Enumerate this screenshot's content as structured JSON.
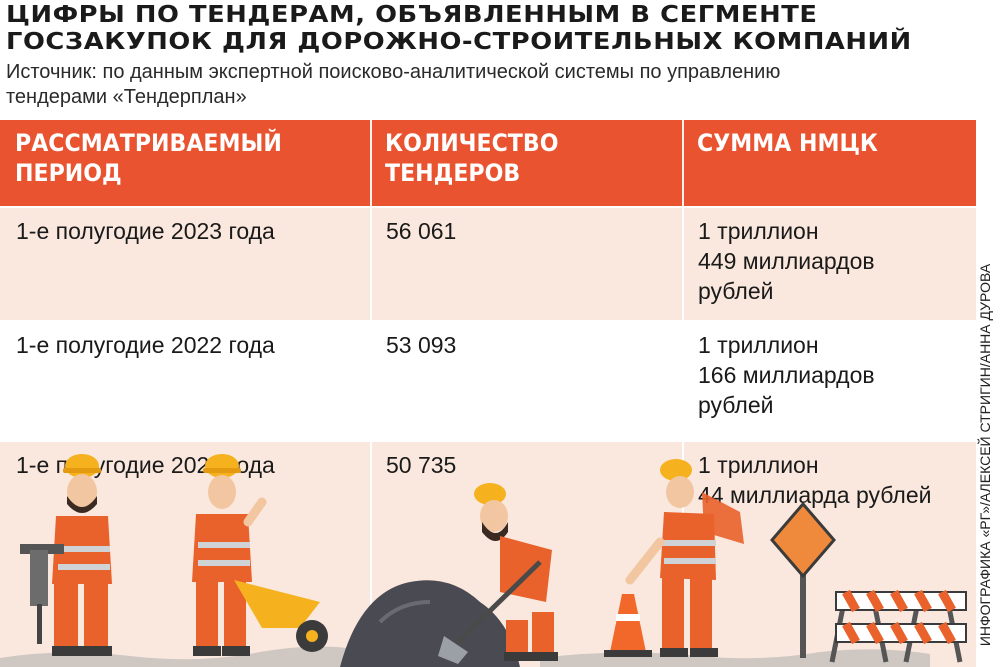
{
  "title": "ЦИФРЫ ПО ТЕНДЕРАМ, ОБЪЯВЛЕННЫМ В СЕГМЕНТЕ ГОСЗАКУПОК ДЛЯ ДОРОЖНО-СТРОИТЕЛЬНЫХ КОМПАНИЙ",
  "source": "Источник: по данным экспертной поисково-аналитической системы по управлению тендерами «Тендерплан»",
  "table": {
    "headers": [
      "РАССМАТРИВАЕМЫЙ ПЕРИОД",
      "КОЛИЧЕСТВО ТЕНДЕРОВ",
      "СУММА НМЦК"
    ],
    "rows": [
      {
        "period": "1-е полугодие 2023 года",
        "count": "56 061",
        "sum_l1": "1 триллион",
        "sum_l2": "449 миллиардов",
        "sum_l3": "рублей"
      },
      {
        "period": "1-е полугодие 2022 года",
        "count": "53 093",
        "sum_l1": "1 триллион",
        "sum_l2": "166 миллиардов",
        "sum_l3": "рублей"
      },
      {
        "period": "1-е полугодие 2021 года",
        "count": "50 735",
        "sum_l1": "1 триллион",
        "sum_l2": "44 миллиарда рублей",
        "sum_l3": ""
      }
    ]
  },
  "credit": "ИНФОГРАФИКА «РГ»/АЛЕКСЕЙ СТРИГИН/АННА ДУРОВА",
  "colors": {
    "header_bg": "#e9532f",
    "row_tint": "#fae8de",
    "worker_orange": "#e9622b",
    "helmet_yellow": "#f6b21e"
  }
}
